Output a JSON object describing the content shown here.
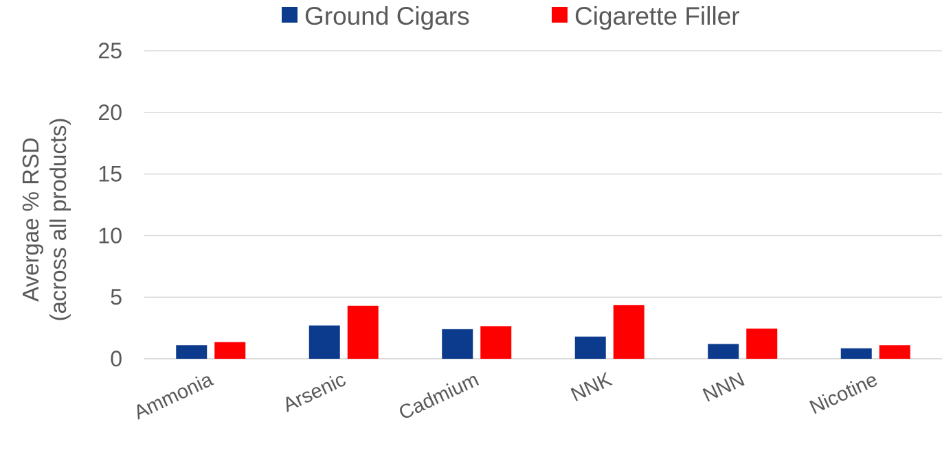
{
  "chart_data": {
    "type": "bar",
    "title": "",
    "xlabel": "",
    "ylabel_lines": [
      "Avergae % RSD",
      "(across all products)"
    ],
    "categories": [
      "Ammonia",
      "Arsenic",
      "Cadmium",
      "NNK",
      "NNN",
      "Nicotine"
    ],
    "series": [
      {
        "name": "Ground Cigars",
        "color": "#0c3a8c",
        "values": [
          1.1,
          2.7,
          2.4,
          1.8,
          1.2,
          0.85
        ]
      },
      {
        "name": "Cigarette Filler",
        "color": "#ff0000",
        "values": [
          1.35,
          4.3,
          2.65,
          4.35,
          2.45,
          1.1
        ]
      }
    ],
    "ylim": [
      0,
      25
    ],
    "yticks": [
      0,
      5,
      10,
      15,
      20,
      25
    ],
    "grid": true,
    "legend_position": "top"
  }
}
